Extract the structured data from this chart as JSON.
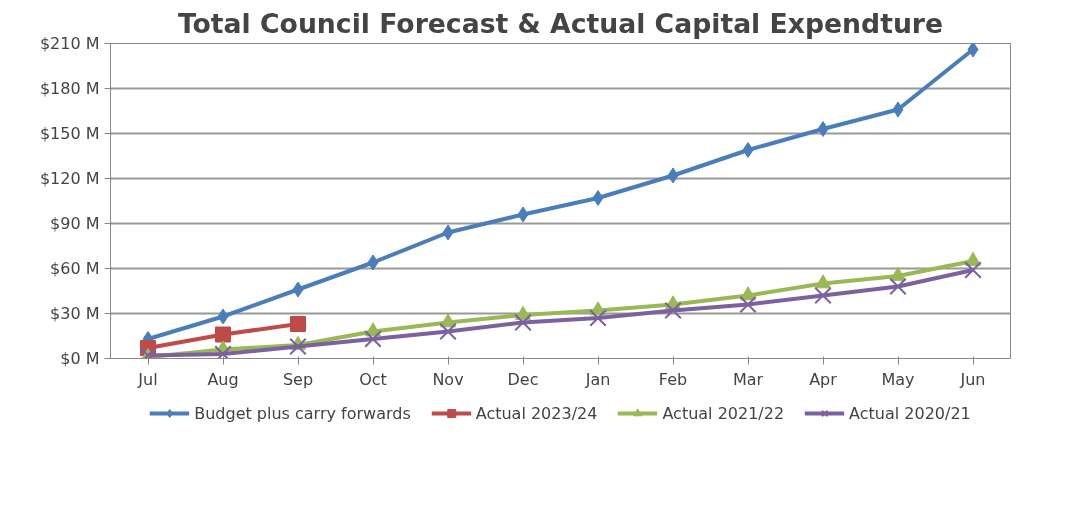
{
  "chart_data": {
    "type": "line",
    "title": "Total Council Forecast & Actual Capital Expendture",
    "categories": [
      "Jul",
      "Aug",
      "Sep",
      "Oct",
      "Nov",
      "Dec",
      "Jan",
      "Feb",
      "Mar",
      "Apr",
      "May",
      "Jun"
    ],
    "series": [
      {
        "name": "Budget plus carry forwards",
        "color": "#4a7ebb",
        "marker": "diamond",
        "values": [
          13,
          28,
          46,
          64,
          84,
          96,
          107,
          122,
          139,
          153,
          166,
          206
        ]
      },
      {
        "name": "Actual 2023/24",
        "color": "#be4b48",
        "marker": "square",
        "values": [
          7,
          16,
          23,
          null,
          null,
          null,
          null,
          null,
          null,
          null,
          null,
          null
        ]
      },
      {
        "name": "Actual 2021/22",
        "color": "#98b954",
        "marker": "triangle",
        "values": [
          1,
          6,
          9,
          18,
          24,
          29,
          32,
          36,
          42,
          50,
          55,
          65
        ]
      },
      {
        "name": "Actual 2020/21",
        "color": "#7d60a0",
        "marker": "cross",
        "values": [
          2,
          3,
          8,
          13,
          18,
          24,
          27,
          32,
          36,
          42,
          48,
          59
        ]
      }
    ],
    "ylim": [
      0,
      210
    ],
    "yticks": [
      {
        "value": 0,
        "label": "$0 M"
      },
      {
        "value": 30,
        "label": "$30 M"
      },
      {
        "value": 60,
        "label": "$60 M"
      },
      {
        "value": 90,
        "label": "$90 M"
      },
      {
        "value": 120,
        "label": "$120 M"
      },
      {
        "value": 150,
        "label": "$150 M"
      },
      {
        "value": 180,
        "label": "$180 M"
      },
      {
        "value": 210,
        "label": "$210 M"
      }
    ],
    "grid": "y",
    "legend": "bottom",
    "line_style": "solid"
  }
}
